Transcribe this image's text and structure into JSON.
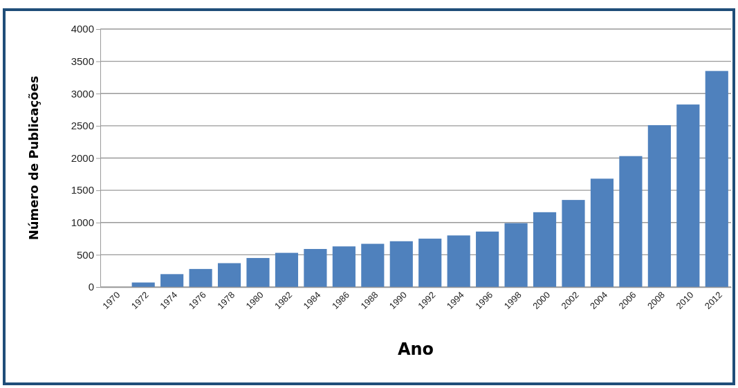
{
  "chart_data": {
    "type": "bar",
    "xlabel": "Ano",
    "ylabel": "Número de Publicações",
    "categories": [
      "1970",
      "1972",
      "1974",
      "1976",
      "1978",
      "1980",
      "1982",
      "1984",
      "1986",
      "1988",
      "1990",
      "1992",
      "1994",
      "1996",
      "1998",
      "2000",
      "2002",
      "2004",
      "2006",
      "2008",
      "2010",
      "2012"
    ],
    "values": [
      0,
      70,
      200,
      280,
      370,
      450,
      530,
      590,
      630,
      670,
      710,
      750,
      800,
      860,
      990,
      1160,
      1350,
      1680,
      2030,
      2510,
      2830,
      3350
    ],
    "color": "#4f81bd",
    "ylim": [
      0,
      4000
    ],
    "yticks": [
      0,
      500,
      1000,
      1500,
      2000,
      2500,
      3000,
      3500,
      4000
    ],
    "grid": "y"
  }
}
